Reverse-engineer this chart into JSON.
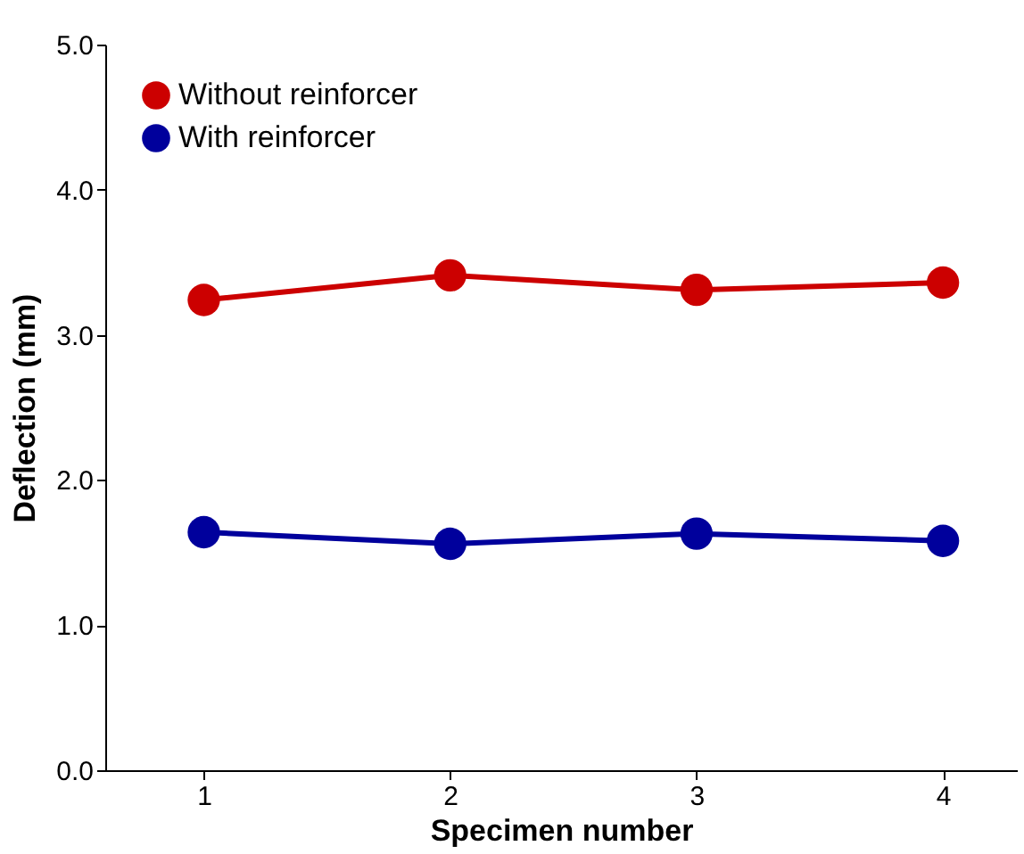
{
  "chart_data": {
    "type": "line",
    "xlabel": "Specimen number",
    "ylabel": "Deflection (mm)",
    "x": [
      1,
      2,
      3,
      4
    ],
    "series": [
      {
        "name": "Without reinforcer",
        "color": "#cc0000",
        "values": [
          3.24,
          3.41,
          3.31,
          3.36
        ]
      },
      {
        "name": "With reinforcer",
        "color": "#00009c",
        "values": [
          1.64,
          1.56,
          1.63,
          1.58
        ]
      }
    ],
    "xlim": [
      0.6,
      4.3
    ],
    "xticks": [
      1,
      2,
      3,
      4
    ],
    "ylim": [
      0,
      5
    ],
    "yticks": [
      {
        "value": 0,
        "label": "0.0"
      },
      {
        "value": 1,
        "label": "1.0"
      },
      {
        "value": 2,
        "label": "2.0"
      },
      {
        "value": 3,
        "label": "3.0"
      },
      {
        "value": 4,
        "label": "4.0"
      },
      {
        "value": 5,
        "label": "5.0"
      }
    ],
    "grid": false,
    "legend": "top left",
    "marker": "circle",
    "line_style": "solid"
  }
}
